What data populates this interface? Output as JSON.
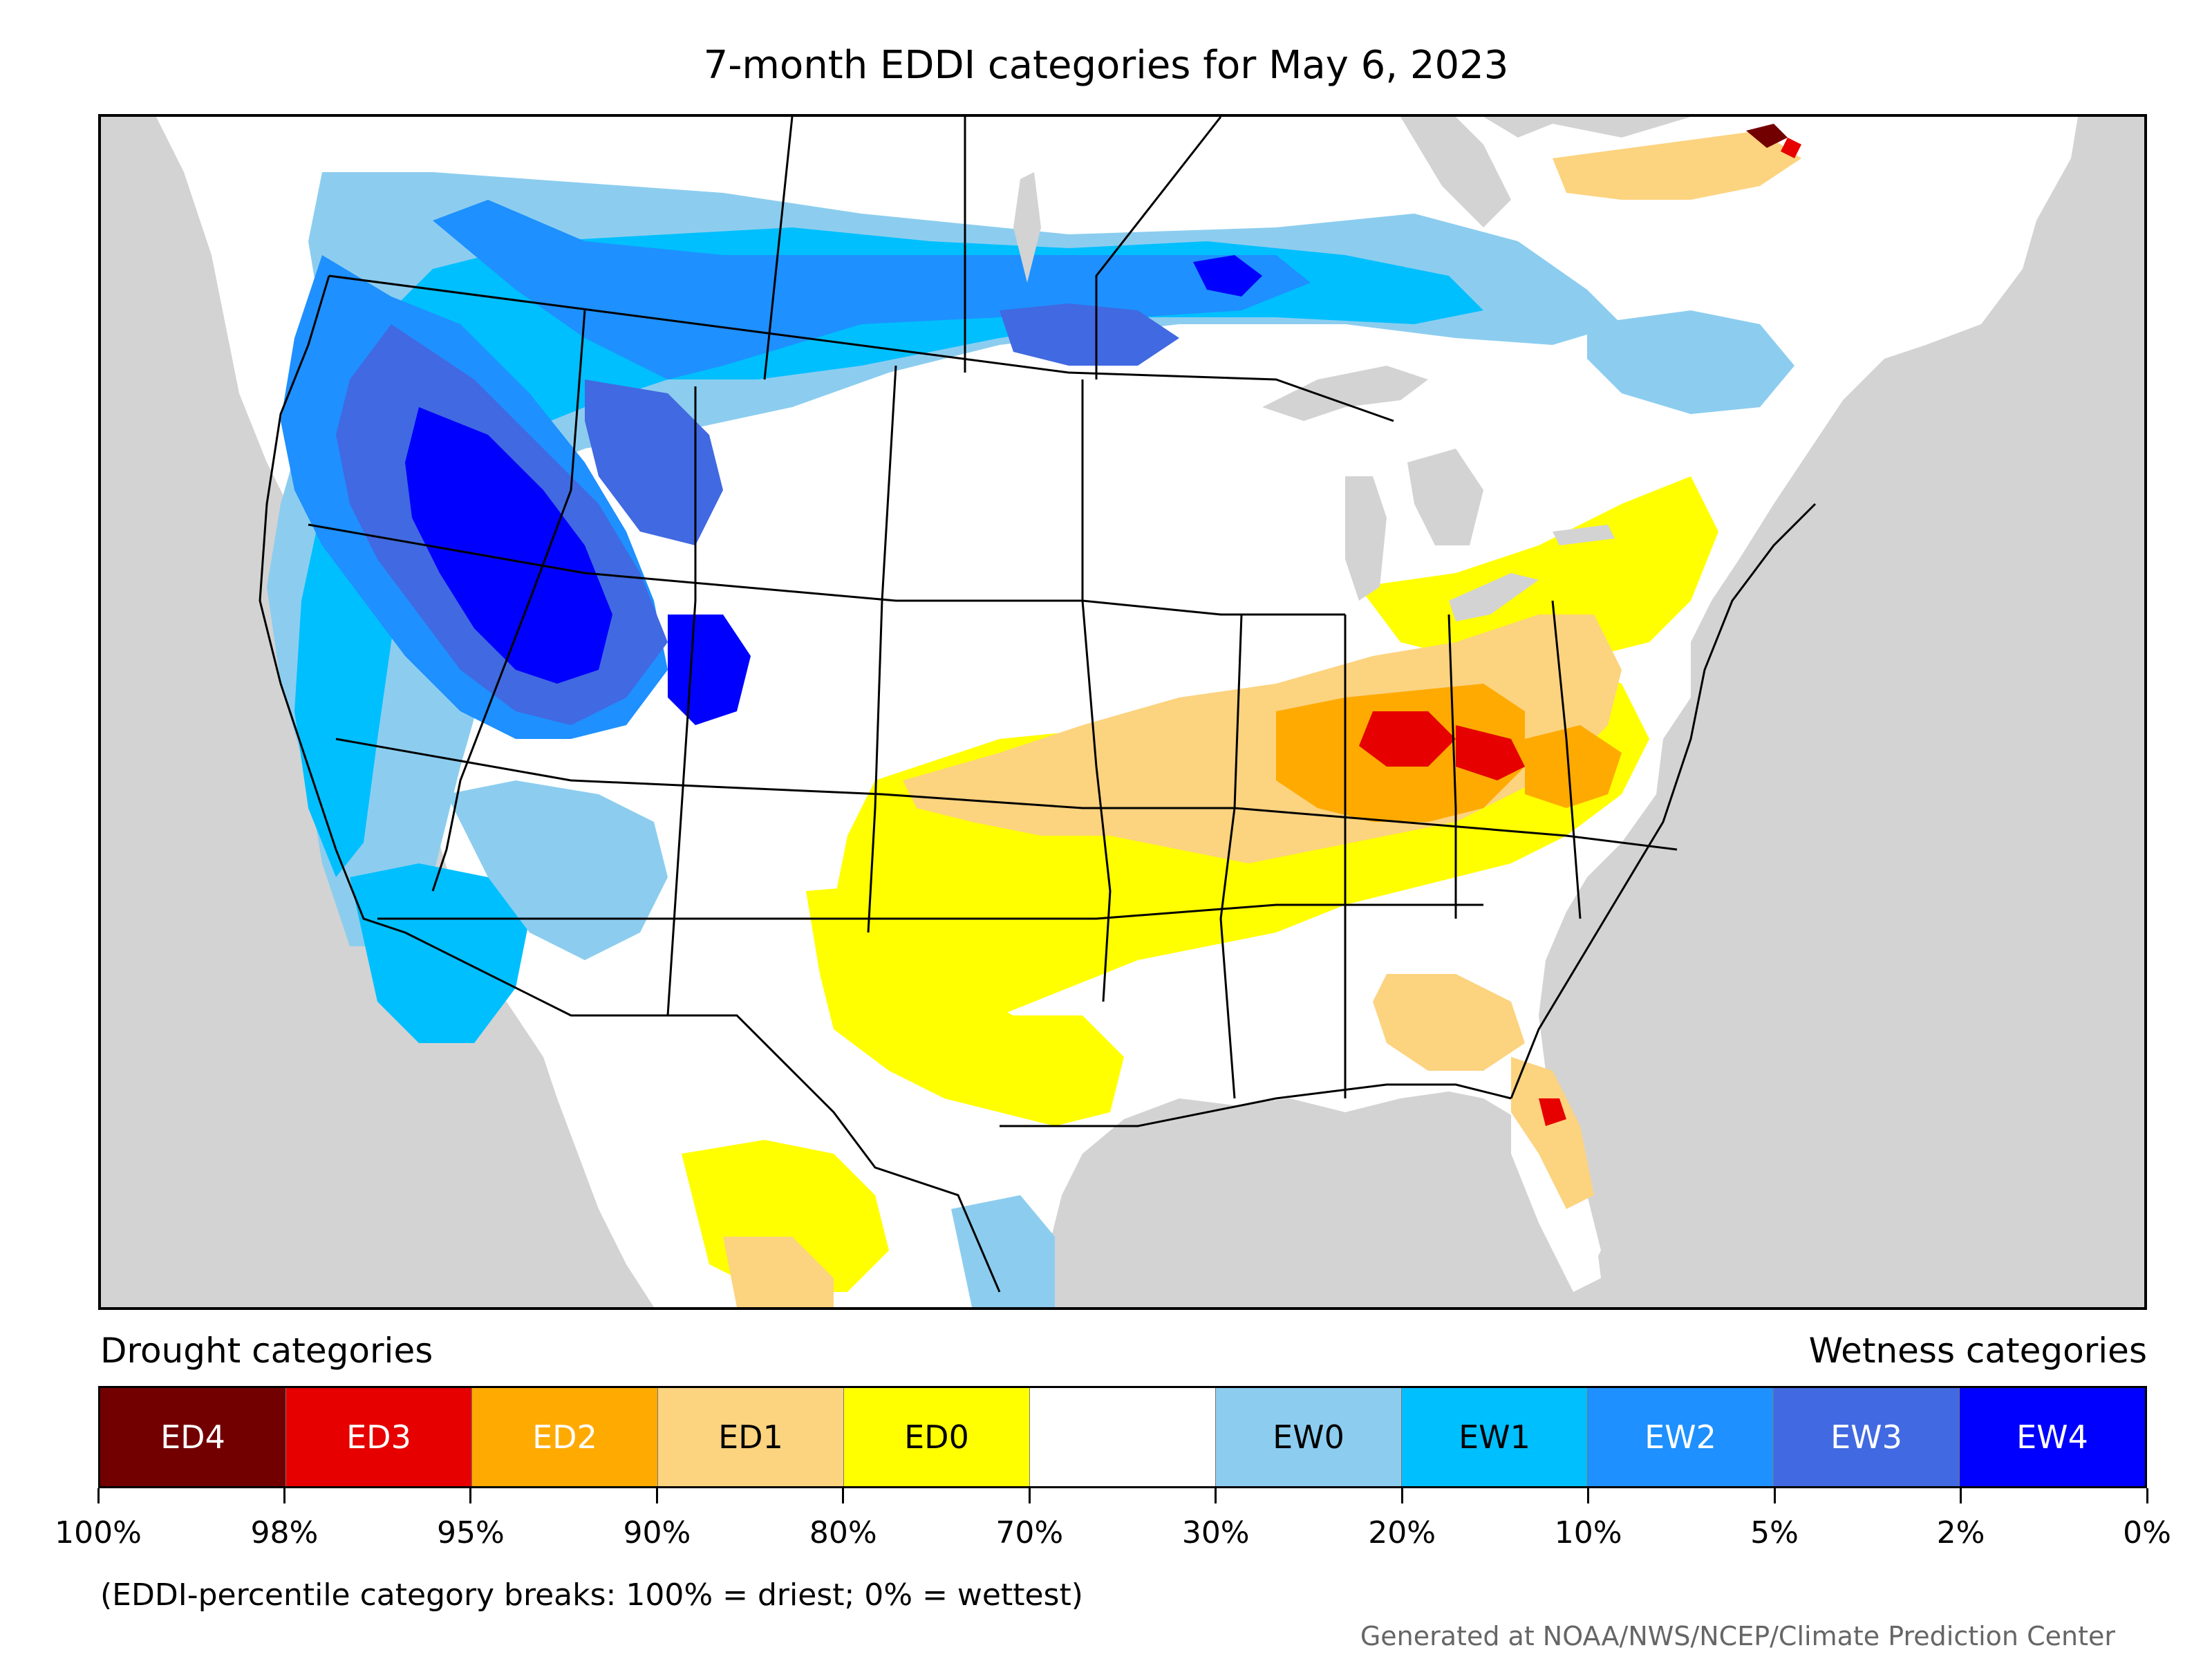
{
  "title": "7-month EDDI categories for May 6, 2023",
  "legend": {
    "drought_heading": "Drought categories",
    "wetness_heading": "Wetness categories",
    "categories": [
      {
        "label": "ED4",
        "color": "#730000",
        "text_color": "#ffffff"
      },
      {
        "label": "ED3",
        "color": "#e60000",
        "text_color": "#ffffff"
      },
      {
        "label": "ED2",
        "color": "#ffaa00",
        "text_color": "#ffffff"
      },
      {
        "label": "ED1",
        "color": "#fcd37f",
        "text_color": "#000000"
      },
      {
        "label": "ED0",
        "color": "#ffff00",
        "text_color": "#000000"
      },
      {
        "label": "",
        "color": "#ffffff",
        "text_color": "#000000"
      },
      {
        "label": "EW0",
        "color": "#8ccdef",
        "text_color": "#000000"
      },
      {
        "label": "EW1",
        "color": "#00bfff",
        "text_color": "#000000"
      },
      {
        "label": "EW2",
        "color": "#1e90ff",
        "text_color": "#ffffff"
      },
      {
        "label": "EW3",
        "color": "#4169e1",
        "text_color": "#ffffff"
      },
      {
        "label": "EW4",
        "color": "#0000ff",
        "text_color": "#ffffff"
      }
    ],
    "breaks": [
      "100%",
      "98%",
      "95%",
      "90%",
      "80%",
      "70%",
      "30%",
      "20%",
      "10%",
      "5%",
      "2%",
      "0%"
    ]
  },
  "note": "(EDDI-percentile category breaks: 100% = driest; 0% = wettest)",
  "credit": "Generated at NOAA/NWS/NCEP/Climate Prediction Center",
  "map": {
    "background_color": "#d3d3d3",
    "land_color": "#ffffff",
    "border_color": "#000000"
  }
}
